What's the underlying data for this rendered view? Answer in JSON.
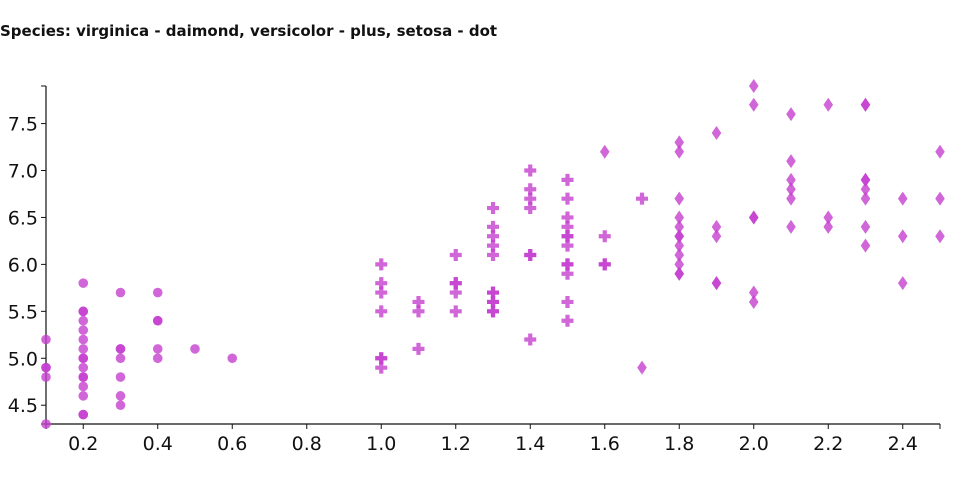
{
  "chart_data": {
    "type": "scatter",
    "title": "Species: virginica - daimond, versicolor - plus, setosa - dot",
    "xlabel": "",
    "ylabel": "",
    "xlim": [
      0.1,
      2.5
    ],
    "ylim": [
      4.3,
      7.9
    ],
    "xticks": [
      "0.2",
      "0.4",
      "0.6",
      "0.8",
      "1.0",
      "1.2",
      "1.4",
      "1.6",
      "1.8",
      "2.0",
      "2.2",
      "2.4"
    ],
    "yticks": [
      "4.5",
      "5.0",
      "5.5",
      "6.0",
      "6.5",
      "7.0",
      "7.5"
    ],
    "grid": false,
    "marker_color": "#c640d0",
    "series": [
      {
        "marker": "dot",
        "points": [
          [
            0.1,
            5.2
          ],
          [
            0.1,
            4.9
          ],
          [
            0.1,
            4.8
          ],
          [
            0.1,
            4.3
          ],
          [
            0.1,
            4.9
          ],
          [
            0.2,
            5.8
          ],
          [
            0.2,
            5.5
          ],
          [
            0.2,
            5.5
          ],
          [
            0.2,
            5.4
          ],
          [
            0.2,
            5.3
          ],
          [
            0.2,
            5.2
          ],
          [
            0.2,
            5.1
          ],
          [
            0.2,
            5.0
          ],
          [
            0.2,
            5.0
          ],
          [
            0.2,
            4.9
          ],
          [
            0.2,
            4.8
          ],
          [
            0.2,
            4.8
          ],
          [
            0.2,
            4.7
          ],
          [
            0.2,
            4.6
          ],
          [
            0.2,
            4.4
          ],
          [
            0.2,
            4.4
          ],
          [
            0.3,
            5.7
          ],
          [
            0.3,
            5.1
          ],
          [
            0.3,
            5.1
          ],
          [
            0.3,
            5.0
          ],
          [
            0.3,
            4.8
          ],
          [
            0.3,
            4.6
          ],
          [
            0.3,
            4.5
          ],
          [
            0.4,
            5.7
          ],
          [
            0.4,
            5.4
          ],
          [
            0.4,
            5.4
          ],
          [
            0.4,
            5.1
          ],
          [
            0.4,
            5.0
          ],
          [
            0.5,
            5.1
          ],
          [
            0.6,
            5.0
          ]
        ]
      },
      {
        "marker": "plus",
        "points": [
          [
            1.0,
            6.0
          ],
          [
            1.0,
            5.0
          ],
          [
            1.0,
            5.0
          ],
          [
            1.0,
            4.9
          ],
          [
            1.0,
            5.5
          ],
          [
            1.0,
            5.8
          ],
          [
            1.0,
            5.7
          ],
          [
            1.1,
            5.6
          ],
          [
            1.1,
            5.5
          ],
          [
            1.1,
            5.1
          ],
          [
            1.2,
            6.1
          ],
          [
            1.2,
            5.8
          ],
          [
            1.2,
            5.8
          ],
          [
            1.2,
            5.7
          ],
          [
            1.2,
            5.5
          ],
          [
            1.3,
            6.6
          ],
          [
            1.3,
            6.4
          ],
          [
            1.3,
            6.3
          ],
          [
            1.3,
            6.2
          ],
          [
            1.3,
            6.1
          ],
          [
            1.3,
            5.7
          ],
          [
            1.3,
            5.7
          ],
          [
            1.3,
            5.6
          ],
          [
            1.3,
            5.6
          ],
          [
            1.3,
            5.5
          ],
          [
            1.3,
            5.5
          ],
          [
            1.4,
            7.0
          ],
          [
            1.4,
            6.8
          ],
          [
            1.4,
            6.7
          ],
          [
            1.4,
            6.6
          ],
          [
            1.4,
            6.1
          ],
          [
            1.4,
            6.1
          ],
          [
            1.4,
            5.2
          ],
          [
            1.5,
            6.9
          ],
          [
            1.5,
            6.7
          ],
          [
            1.5,
            6.5
          ],
          [
            1.5,
            6.4
          ],
          [
            1.5,
            6.3
          ],
          [
            1.5,
            6.3
          ],
          [
            1.5,
            6.2
          ],
          [
            1.5,
            6.0
          ],
          [
            1.5,
            6.0
          ],
          [
            1.5,
            5.9
          ],
          [
            1.5,
            5.6
          ],
          [
            1.5,
            5.4
          ],
          [
            1.6,
            6.3
          ],
          [
            1.6,
            6.0
          ],
          [
            1.6,
            6.0
          ],
          [
            1.7,
            6.7
          ]
        ]
      },
      {
        "marker": "diamond",
        "points": [
          [
            1.6,
            7.2
          ],
          [
            1.7,
            4.9
          ],
          [
            1.8,
            7.3
          ],
          [
            1.8,
            7.2
          ],
          [
            1.8,
            6.7
          ],
          [
            1.8,
            6.5
          ],
          [
            1.8,
            6.4
          ],
          [
            1.8,
            6.3
          ],
          [
            1.8,
            6.3
          ],
          [
            1.8,
            6.2
          ],
          [
            1.8,
            6.1
          ],
          [
            1.8,
            6.0
          ],
          [
            1.8,
            5.9
          ],
          [
            1.8,
            5.9
          ],
          [
            1.9,
            7.4
          ],
          [
            1.9,
            6.4
          ],
          [
            1.9,
            6.3
          ],
          [
            1.9,
            5.8
          ],
          [
            1.9,
            5.8
          ],
          [
            2.0,
            7.9
          ],
          [
            2.0,
            7.7
          ],
          [
            2.0,
            6.5
          ],
          [
            2.0,
            6.5
          ],
          [
            2.0,
            5.7
          ],
          [
            2.0,
            5.6
          ],
          [
            2.1,
            7.6
          ],
          [
            2.1,
            7.1
          ],
          [
            2.1,
            6.9
          ],
          [
            2.1,
            6.8
          ],
          [
            2.1,
            6.7
          ],
          [
            2.1,
            6.4
          ],
          [
            2.2,
            7.7
          ],
          [
            2.2,
            6.5
          ],
          [
            2.2,
            6.4
          ],
          [
            2.3,
            7.7
          ],
          [
            2.3,
            7.7
          ],
          [
            2.3,
            6.9
          ],
          [
            2.3,
            6.9
          ],
          [
            2.3,
            6.8
          ],
          [
            2.3,
            6.7
          ],
          [
            2.3,
            6.4
          ],
          [
            2.3,
            6.2
          ],
          [
            2.4,
            6.7
          ],
          [
            2.4,
            6.3
          ],
          [
            2.4,
            5.8
          ],
          [
            2.5,
            7.2
          ],
          [
            2.5,
            6.7
          ],
          [
            2.5,
            6.3
          ]
        ]
      }
    ]
  }
}
